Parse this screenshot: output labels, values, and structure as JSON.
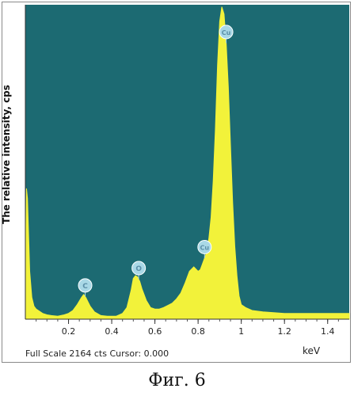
{
  "caption": "Фиг. 6",
  "status_text": "Full Scale 2164 cts Cursor: 0.000",
  "chart_data": {
    "type": "area",
    "title": "",
    "ylabel": "The relative intensity, cps",
    "xlabel": "keV",
    "xlim": [
      0,
      1.5
    ],
    "ylim": [
      0,
      2164
    ],
    "x_ticks": [
      "0.2",
      "0.4",
      "0.6",
      "0.8",
      "1",
      "1.2",
      "1.4"
    ],
    "x_tick_values": [
      0.2,
      0.4,
      0.6,
      0.8,
      1.0,
      1.2,
      1.4
    ],
    "full_scale": 2164,
    "grid": false,
    "colors": {
      "background": "#1c6a72",
      "fill": "#f2f23a",
      "marker": "#a9d8e6",
      "marker_text": "#5b8fa8"
    },
    "series": [
      {
        "x": [
          0.0,
          0.005,
          0.01,
          0.02,
          0.03,
          0.04,
          0.05,
          0.06,
          0.08,
          0.1,
          0.12,
          0.15,
          0.18,
          0.2,
          0.22,
          0.24,
          0.26,
          0.27,
          0.28,
          0.3,
          0.32,
          0.35,
          0.38,
          0.42,
          0.45,
          0.47,
          0.49,
          0.5,
          0.51,
          0.52,
          0.53,
          0.54,
          0.56,
          0.58,
          0.6,
          0.62,
          0.64,
          0.66,
          0.68,
          0.7,
          0.72,
          0.74,
          0.76,
          0.78,
          0.8,
          0.81,
          0.82,
          0.83,
          0.84,
          0.85,
          0.86,
          0.87,
          0.88,
          0.89,
          0.9,
          0.91,
          0.92,
          0.93,
          0.94,
          0.95,
          0.96,
          0.97,
          0.98,
          0.99,
          1.0,
          1.02,
          1.05,
          1.1,
          1.2,
          1.3,
          1.4,
          1.5
        ],
        "y": [
          0,
          900,
          830,
          330,
          150,
          90,
          70,
          60,
          40,
          30,
          25,
          20,
          30,
          40,
          60,
          100,
          150,
          170,
          150,
          90,
          50,
          25,
          20,
          20,
          40,
          80,
          200,
          280,
          300,
          290,
          260,
          210,
          130,
          80,
          70,
          70,
          80,
          95,
          110,
          140,
          180,
          250,
          330,
          360,
          330,
          340,
          380,
          420,
          460,
          560,
          700,
          950,
          1300,
          1750,
          2050,
          2150,
          2100,
          1900,
          1600,
          1200,
          800,
          500,
          300,
          160,
          100,
          80,
          60,
          50,
          40,
          40,
          40,
          40
        ]
      }
    ],
    "annotations": [
      {
        "label": "C",
        "x": 0.277
      },
      {
        "label": "O",
        "x": 0.525
      },
      {
        "label": "Cu",
        "x": 0.83
      },
      {
        "label": "Cu",
        "x": 0.93
      }
    ]
  }
}
